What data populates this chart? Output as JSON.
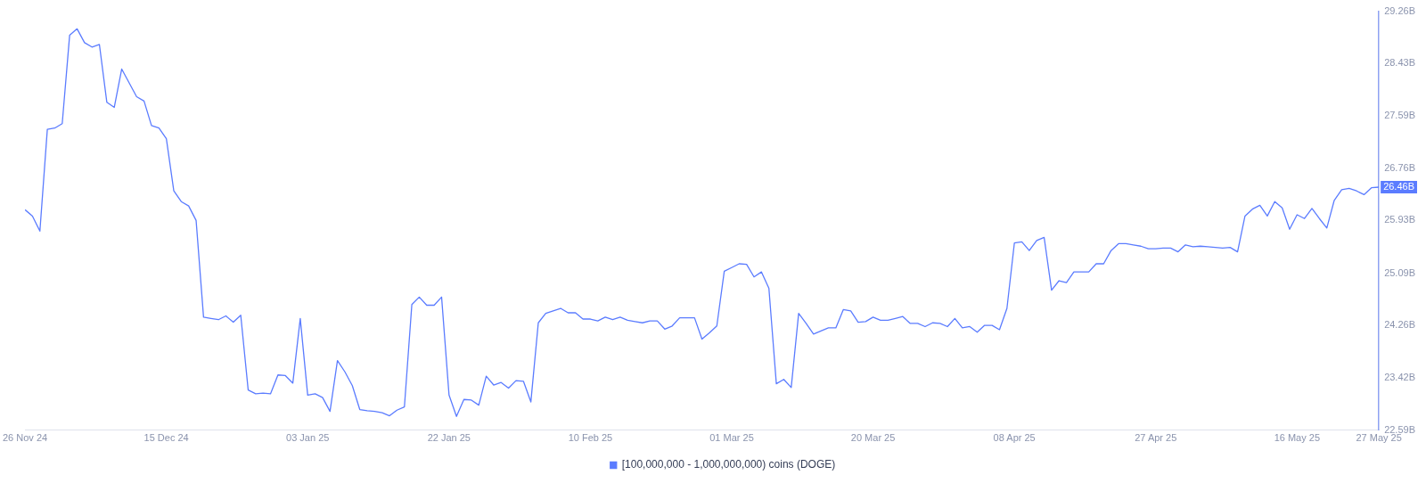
{
  "chart_data": {
    "type": "line",
    "x": [
      "2024-11-26",
      "2024-11-27",
      "2024-11-28",
      "2024-11-29",
      "2024-11-30",
      "2024-12-01",
      "2024-12-02",
      "2024-12-03",
      "2024-12-04",
      "2024-12-05",
      "2024-12-06",
      "2024-12-07",
      "2024-12-08",
      "2024-12-09",
      "2024-12-10",
      "2024-12-11",
      "2024-12-12",
      "2024-12-13",
      "2024-12-14",
      "2024-12-15",
      "2024-12-16",
      "2024-12-17",
      "2024-12-18",
      "2024-12-19",
      "2024-12-20",
      "2024-12-21",
      "2024-12-22",
      "2024-12-23",
      "2024-12-24",
      "2024-12-25",
      "2024-12-26",
      "2024-12-27",
      "2024-12-28",
      "2024-12-29",
      "2024-12-30",
      "2024-12-31",
      "2025-01-01",
      "2025-01-02",
      "2025-01-03",
      "2025-01-04",
      "2025-01-05",
      "2025-01-06",
      "2025-01-07",
      "2025-01-08",
      "2025-01-09",
      "2025-01-10",
      "2025-01-11",
      "2025-01-12",
      "2025-01-13",
      "2025-01-14",
      "2025-01-15",
      "2025-01-16",
      "2025-01-17",
      "2025-01-18",
      "2025-01-19",
      "2025-01-20",
      "2025-01-21",
      "2025-01-22",
      "2025-01-23",
      "2025-01-24",
      "2025-01-25",
      "2025-01-26",
      "2025-01-27",
      "2025-01-28",
      "2025-01-29",
      "2025-01-30",
      "2025-01-31",
      "2025-02-01",
      "2025-02-02",
      "2025-02-03",
      "2025-02-04",
      "2025-02-05",
      "2025-02-06",
      "2025-02-07",
      "2025-02-08",
      "2025-02-09",
      "2025-02-10",
      "2025-02-11",
      "2025-02-12",
      "2025-02-13",
      "2025-02-14",
      "2025-02-15",
      "2025-02-16",
      "2025-02-17",
      "2025-02-18",
      "2025-02-19",
      "2025-02-20",
      "2025-02-21",
      "2025-02-22",
      "2025-02-23",
      "2025-02-24",
      "2025-02-25",
      "2025-02-26",
      "2025-02-27",
      "2025-02-28",
      "2025-03-01",
      "2025-03-02",
      "2025-03-03",
      "2025-03-04",
      "2025-03-05",
      "2025-03-06",
      "2025-03-07",
      "2025-03-08",
      "2025-03-09",
      "2025-03-10",
      "2025-03-11",
      "2025-03-12",
      "2025-03-13",
      "2025-03-14",
      "2025-03-15",
      "2025-03-16",
      "2025-03-17",
      "2025-03-18",
      "2025-03-19",
      "2025-03-20",
      "2025-03-21",
      "2025-03-22",
      "2025-03-23",
      "2025-03-24",
      "2025-03-25",
      "2025-03-26",
      "2025-03-27",
      "2025-03-28",
      "2025-03-29",
      "2025-03-30",
      "2025-03-31",
      "2025-04-01",
      "2025-04-02",
      "2025-04-03",
      "2025-04-04",
      "2025-04-05",
      "2025-04-06",
      "2025-04-07",
      "2025-04-08",
      "2025-04-09",
      "2025-04-10",
      "2025-04-11",
      "2025-04-12",
      "2025-04-13",
      "2025-04-14",
      "2025-04-15",
      "2025-04-16",
      "2025-04-17",
      "2025-04-18",
      "2025-04-19",
      "2025-04-20",
      "2025-04-21",
      "2025-04-22",
      "2025-04-23",
      "2025-04-24",
      "2025-04-25",
      "2025-04-26",
      "2025-04-27",
      "2025-04-28",
      "2025-04-29",
      "2025-04-30",
      "2025-05-01",
      "2025-05-02",
      "2025-05-03",
      "2025-05-04",
      "2025-05-05",
      "2025-05-06",
      "2025-05-07",
      "2025-05-08",
      "2025-05-09",
      "2025-05-10",
      "2025-05-11",
      "2025-05-12",
      "2025-05-13",
      "2025-05-14",
      "2025-05-15",
      "2025-05-16",
      "2025-05-17",
      "2025-05-18",
      "2025-05-19",
      "2025-05-20",
      "2025-05-21",
      "2025-05-22",
      "2025-05-23",
      "2025-05-24",
      "2025-05-25",
      "2025-05-26",
      "2025-05-27"
    ],
    "series": [
      {
        "name": "[100,000,000 - 1,000,000,000) coins (DOGE)",
        "color": "#5b7cff",
        "values": [
          26.1,
          26.0,
          25.76,
          27.38,
          27.4,
          27.47,
          28.88,
          28.98,
          28.76,
          28.69,
          28.73,
          27.81,
          27.73,
          28.34,
          28.12,
          27.9,
          27.83,
          27.44,
          27.4,
          27.23,
          26.4,
          26.23,
          26.16,
          25.93,
          24.39,
          24.37,
          24.35,
          24.41,
          24.31,
          24.42,
          23.23,
          23.17,
          23.18,
          23.17,
          23.47,
          23.46,
          23.34,
          24.37,
          23.15,
          23.17,
          23.11,
          22.89,
          23.7,
          23.52,
          23.3,
          22.92,
          22.9,
          22.89,
          22.87,
          22.82,
          22.91,
          22.96,
          24.59,
          24.71,
          24.58,
          24.58,
          24.71,
          23.15,
          22.81,
          23.08,
          23.07,
          22.99,
          23.45,
          23.31,
          23.35,
          23.26,
          23.38,
          23.37,
          23.04,
          24.3,
          24.45,
          24.49,
          24.53,
          24.46,
          24.46,
          24.36,
          24.36,
          24.33,
          24.39,
          24.35,
          24.39,
          24.34,
          24.32,
          24.3,
          24.33,
          24.33,
          24.2,
          24.25,
          24.38,
          24.38,
          24.38,
          24.04,
          24.14,
          24.25,
          25.12,
          25.18,
          25.24,
          25.23,
          25.03,
          25.11,
          24.85,
          23.33,
          23.4,
          23.27,
          24.45,
          24.29,
          24.12,
          24.17,
          24.22,
          24.22,
          24.51,
          24.49,
          24.31,
          24.32,
          24.39,
          24.34,
          24.34,
          24.37,
          24.4,
          24.29,
          24.29,
          24.24,
          24.3,
          24.29,
          24.24,
          24.37,
          24.22,
          24.24,
          24.15,
          24.26,
          24.26,
          24.19,
          24.53,
          25.57,
          25.59,
          25.45,
          25.61,
          25.66,
          24.82,
          24.97,
          24.94,
          25.11,
          25.11,
          25.11,
          25.24,
          25.24,
          25.45,
          25.56,
          25.56,
          25.54,
          25.52,
          25.48,
          25.48,
          25.49,
          25.49,
          25.43,
          25.54,
          25.51,
          25.52,
          25.51,
          25.5,
          25.49,
          25.5,
          25.43,
          26.0,
          26.11,
          26.17,
          26.0,
          26.23,
          26.13,
          25.79,
          26.02,
          25.96,
          26.12,
          25.96,
          25.81,
          26.25,
          26.42,
          26.44,
          26.4,
          26.34,
          26.45,
          26.46
        ]
      }
    ],
    "xlim": [
      "2024-11-26",
      "2025-05-27"
    ],
    "xticks": [
      {
        "value": "2024-11-26",
        "label": "26 Nov 24"
      },
      {
        "value": "2024-12-15",
        "label": "15 Dec 24"
      },
      {
        "value": "2025-01-03",
        "label": "03 Jan 25"
      },
      {
        "value": "2025-01-22",
        "label": "22 Jan 25"
      },
      {
        "value": "2025-02-10",
        "label": "10 Feb 25"
      },
      {
        "value": "2025-03-01",
        "label": "01 Mar 25"
      },
      {
        "value": "2025-03-20",
        "label": "20 Mar 25"
      },
      {
        "value": "2025-04-08",
        "label": "08 Apr 25"
      },
      {
        "value": "2025-04-27",
        "label": "27 Apr 25"
      },
      {
        "value": "2025-05-16",
        "label": "16 May 25"
      },
      {
        "value": "2025-05-27",
        "label": "27 May 25"
      }
    ],
    "ylim": [
      22.59,
      29.26
    ],
    "yticks": [
      {
        "value": 22.59,
        "label": "22.59B"
      },
      {
        "value": 23.42,
        "label": "23.42B"
      },
      {
        "value": 24.26,
        "label": "24.26B"
      },
      {
        "value": 25.09,
        "label": "25.09B"
      },
      {
        "value": 25.93,
        "label": "25.93B"
      },
      {
        "value": 26.76,
        "label": "26.76B"
      },
      {
        "value": 27.59,
        "label": "27.59B"
      },
      {
        "value": 28.43,
        "label": "28.43B"
      },
      {
        "value": 29.26,
        "label": "29.26B"
      }
    ],
    "annotations": [
      {
        "text": "26.46B",
        "x": "2025-05-27",
        "y": 26.46
      }
    ],
    "legend": "bottom",
    "grid": false,
    "marker": "none",
    "line_style": "solid"
  }
}
